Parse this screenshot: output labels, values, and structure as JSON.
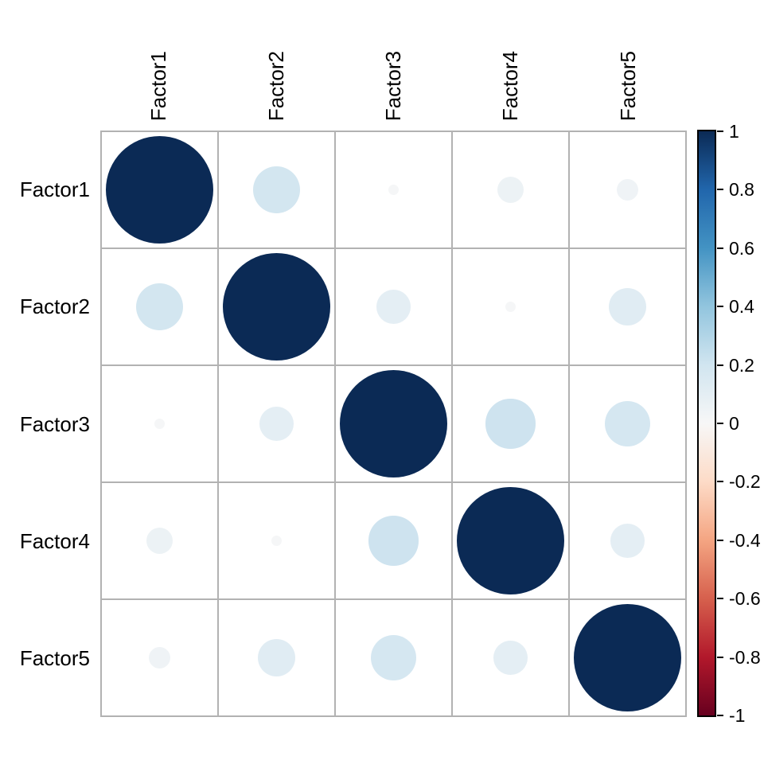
{
  "chart_data": {
    "type": "heatmap",
    "subtype": "correlation-circle-matrix",
    "title": "",
    "categories": [
      "Factor1",
      "Factor2",
      "Factor3",
      "Factor4",
      "Factor5"
    ],
    "matrix": [
      [
        1.0,
        0.19,
        0.01,
        0.06,
        0.04
      ],
      [
        0.19,
        1.0,
        0.1,
        0.01,
        0.12
      ],
      [
        0.01,
        0.1,
        1.0,
        0.21,
        0.18
      ],
      [
        0.06,
        0.01,
        0.21,
        1.0,
        0.1
      ],
      [
        0.04,
        0.12,
        0.18,
        0.1,
        1.0
      ]
    ],
    "encoding": "circle area proportional to |r|; color from diverging red-white-blue scale",
    "grid": "on",
    "colorbar": {
      "position": "right",
      "min": -1,
      "max": 1,
      "ticks": [
        "1",
        "0.8",
        "0.6",
        "0.4",
        "0.2",
        "0",
        "-0.2",
        "-0.4",
        "-0.6",
        "-0.8",
        "-1"
      ]
    },
    "colorscale": [
      {
        "value": -1.0,
        "color": "#67001F"
      },
      {
        "value": -0.8,
        "color": "#B2182B"
      },
      {
        "value": -0.6,
        "color": "#D6604D"
      },
      {
        "value": -0.4,
        "color": "#F4A582"
      },
      {
        "value": -0.2,
        "color": "#FDDBC7"
      },
      {
        "value": 0.0,
        "color": "#F7F7F7"
      },
      {
        "value": 0.2,
        "color": "#D1E5F0"
      },
      {
        "value": 0.4,
        "color": "#92C5DE"
      },
      {
        "value": 0.6,
        "color": "#4393C3"
      },
      {
        "value": 0.8,
        "color": "#2166AC"
      },
      {
        "value": 1.0,
        "color": "#0B2A55"
      }
    ],
    "colors": {
      "background": "#ffffff",
      "grid_line": "#b2b2b2",
      "text": "#000000",
      "colorbar_border": "#000000"
    }
  }
}
